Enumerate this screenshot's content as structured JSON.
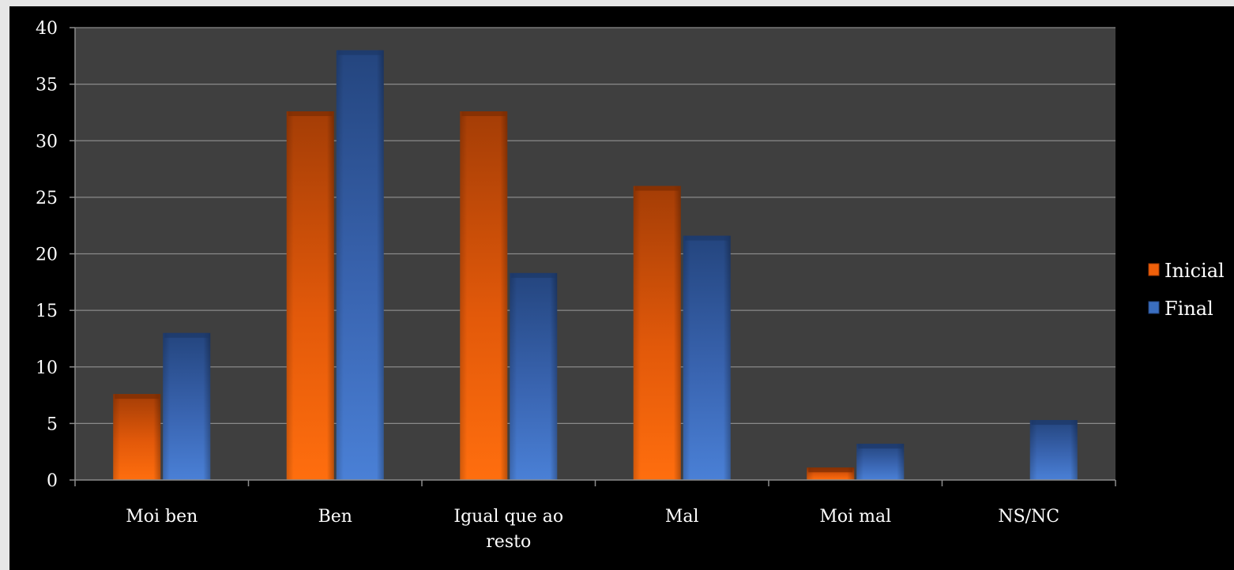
{
  "chart_data": {
    "type": "bar",
    "categories": [
      [
        "Moi ben"
      ],
      [
        "Ben"
      ],
      [
        "Igual que ao",
        "resto"
      ],
      [
        "Mal"
      ],
      [
        "Moi mal"
      ],
      [
        "NS/NC"
      ]
    ],
    "series": [
      {
        "name": "Inicial",
        "color": "#f0600a",
        "values": [
          7.6,
          32.6,
          32.6,
          26.0,
          1.1,
          0
        ]
      },
      {
        "name": "Final",
        "color": "#3a6ec0",
        "values": [
          13.0,
          38.0,
          18.3,
          21.6,
          3.2,
          5.3
        ]
      }
    ],
    "y_ticks": [
      "0",
      "5",
      "10",
      "15",
      "20",
      "25",
      "30",
      "35",
      "40"
    ],
    "ylim": [
      0,
      40
    ],
    "grid": true,
    "legend_position": "right",
    "plot_background": "#3f3f3f",
    "frame_background": "#000000"
  }
}
